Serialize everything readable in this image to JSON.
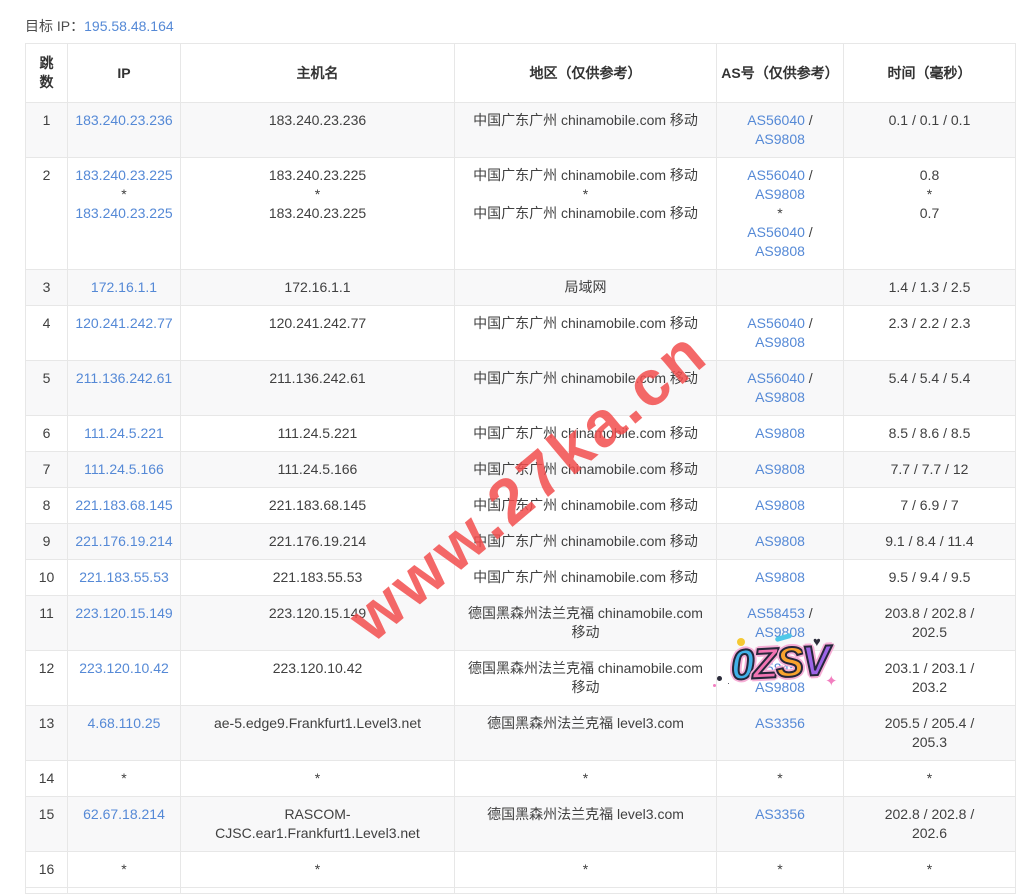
{
  "colors": {
    "link_blue": "#5589d6",
    "watermark_red": "#f24e4e",
    "stripe_bg": "#f8f8f9",
    "border": "#e7e7e7",
    "text": "#404040"
  },
  "header": {
    "target_ip_label": "目标 IP：",
    "target_ip": "195.58.48.164"
  },
  "watermark": {
    "text": "www.27ka.cn"
  },
  "sticker": {
    "heart_icon": "♥",
    "sparkle_icon": "✦",
    "letters": [
      {
        "t": "0",
        "c": "#41b1e8"
      },
      {
        "t": "Z",
        "c": "#f273b2"
      },
      {
        "t": "S",
        "c": "#f9a32e"
      },
      {
        "t": "V",
        "c": "#9d64e6"
      }
    ]
  },
  "table": {
    "columns": [
      "跳\n数",
      "IP",
      "主机名",
      "地区（仅供参考）",
      "AS号（仅供参考）",
      "时间（毫秒）"
    ],
    "rows": [
      {
        "hop": "1",
        "ip": [
          [
            {
              "t": "183.240.23.236",
              "link": true
            }
          ]
        ],
        "host": [
          "183.240.23.236"
        ],
        "region": [
          "中国广东广州 chinamobile.com 移动"
        ],
        "as": [
          [
            {
              "t": "AS56040",
              "link": true
            },
            {
              "t": " /"
            }
          ],
          [
            {
              "t": "AS9808",
              "link": true
            }
          ]
        ],
        "time": [
          "0.1 / 0.1 / 0.1"
        ]
      },
      {
        "hop": "2",
        "ip": [
          [
            {
              "t": "183.240.23.225",
              "link": true
            }
          ],
          [
            {
              "t": "*"
            }
          ],
          [
            {
              "t": "183.240.23.225",
              "link": true
            }
          ]
        ],
        "host": [
          "183.240.23.225",
          "*",
          "183.240.23.225"
        ],
        "region": [
          "中国广东广州 chinamobile.com 移动",
          "*",
          "中国广东广州 chinamobile.com 移动"
        ],
        "as": [
          [
            {
              "t": "AS56040",
              "link": true
            },
            {
              "t": " /"
            }
          ],
          [
            {
              "t": "AS9808",
              "link": true
            }
          ],
          [
            {
              "t": "*"
            }
          ],
          [
            {
              "t": "AS56040",
              "link": true
            },
            {
              "t": " /"
            }
          ],
          [
            {
              "t": "AS9808",
              "link": true
            }
          ]
        ],
        "time": [
          "0.8",
          "*",
          "0.7"
        ]
      },
      {
        "hop": "3",
        "ip": [
          [
            {
              "t": "172.16.1.1",
              "link": true
            }
          ]
        ],
        "host": [
          "172.16.1.1"
        ],
        "region": [
          "局域网"
        ],
        "as": [],
        "time": [
          "1.4 / 1.3 / 2.5"
        ]
      },
      {
        "hop": "4",
        "ip": [
          [
            {
              "t": "120.241.242.77",
              "link": true
            }
          ]
        ],
        "host": [
          "120.241.242.77"
        ],
        "region": [
          "中国广东广州 chinamobile.com 移动"
        ],
        "as": [
          [
            {
              "t": "AS56040",
              "link": true
            },
            {
              "t": " /"
            }
          ],
          [
            {
              "t": "AS9808",
              "link": true
            }
          ]
        ],
        "time": [
          "2.3 / 2.2 / 2.3"
        ]
      },
      {
        "hop": "5",
        "ip": [
          [
            {
              "t": "211.136.242.61",
              "link": true
            }
          ]
        ],
        "host": [
          "211.136.242.61"
        ],
        "region": [
          "中国广东广州 chinamobile.com 移动"
        ],
        "as": [
          [
            {
              "t": "AS56040",
              "link": true
            },
            {
              "t": " /"
            }
          ],
          [
            {
              "t": "AS9808",
              "link": true
            }
          ]
        ],
        "time": [
          "5.4 / 5.4 / 5.4"
        ]
      },
      {
        "hop": "6",
        "ip": [
          [
            {
              "t": "111.24.5.221",
              "link": true
            }
          ]
        ],
        "host": [
          "111.24.5.221"
        ],
        "region": [
          "中国广东广州 chinamobile.com 移动"
        ],
        "as": [
          [
            {
              "t": "AS9808",
              "link": true
            }
          ]
        ],
        "time": [
          "8.5 / 8.6 / 8.5"
        ]
      },
      {
        "hop": "7",
        "ip": [
          [
            {
              "t": "111.24.5.166",
              "link": true
            }
          ]
        ],
        "host": [
          "111.24.5.166"
        ],
        "region": [
          "中国广东广州 chinamobile.com 移动"
        ],
        "as": [
          [
            {
              "t": "AS9808",
              "link": true
            }
          ]
        ],
        "time": [
          "7.7 / 7.7 / 12"
        ]
      },
      {
        "hop": "8",
        "ip": [
          [
            {
              "t": "221.183.68.145",
              "link": true
            }
          ]
        ],
        "host": [
          "221.183.68.145"
        ],
        "region": [
          "中国广东广州 chinamobile.com 移动"
        ],
        "as": [
          [
            {
              "t": "AS9808",
              "link": true
            }
          ]
        ],
        "time": [
          "7 / 6.9 / 7"
        ]
      },
      {
        "hop": "9",
        "ip": [
          [
            {
              "t": "221.176.19.214",
              "link": true
            }
          ]
        ],
        "host": [
          "221.176.19.214"
        ],
        "region": [
          "中国广东广州 chinamobile.com 移动"
        ],
        "as": [
          [
            {
              "t": "AS9808",
              "link": true
            }
          ]
        ],
        "time": [
          "9.1 / 8.4 / 11.4"
        ]
      },
      {
        "hop": "10",
        "ip": [
          [
            {
              "t": "221.183.55.53",
              "link": true
            }
          ]
        ],
        "host": [
          "221.183.55.53"
        ],
        "region": [
          "中国广东广州 chinamobile.com 移动"
        ],
        "as": [
          [
            {
              "t": "AS9808",
              "link": true
            }
          ]
        ],
        "time": [
          "9.5 / 9.4 / 9.5"
        ]
      },
      {
        "hop": "11",
        "ip": [
          [
            {
              "t": "223.120.15.149",
              "link": true
            }
          ]
        ],
        "host": [
          "223.120.15.149"
        ],
        "region": [
          "德国黑森州法兰克福 chinamobile.com",
          "移动"
        ],
        "as": [
          [
            {
              "t": "AS58453",
              "link": true
            },
            {
              "t": " /"
            }
          ],
          [
            {
              "t": "AS9808",
              "link": true
            }
          ]
        ],
        "time": [
          "203.8 / 202.8 /",
          "202.5"
        ]
      },
      {
        "hop": "12",
        "ip": [
          [
            {
              "t": "223.120.10.42",
              "link": true
            }
          ]
        ],
        "host": [
          "223.120.10.42"
        ],
        "region": [
          "德国黑森州法兰克福 chinamobile.com",
          "移动"
        ],
        "as": [
          [
            {
              "t": "AS58453",
              "link": true
            },
            {
              "t": " /"
            }
          ],
          [
            {
              "t": "AS9808",
              "link": true
            }
          ]
        ],
        "time": [
          "203.1 / 203.1 /",
          "203.2"
        ]
      },
      {
        "hop": "13",
        "ip": [
          [
            {
              "t": "4.68.110.25",
              "link": true
            }
          ]
        ],
        "host": [
          "ae-5.edge9.Frankfurt1.Level3.net"
        ],
        "region": [
          "德国黑森州法兰克福 level3.com"
        ],
        "as": [
          [
            {
              "t": "AS3356",
              "link": true
            }
          ]
        ],
        "time": [
          "205.5 / 205.4 /",
          "205.3"
        ]
      },
      {
        "hop": "14",
        "ip": [
          [
            {
              "t": "*"
            }
          ]
        ],
        "host": [
          "*"
        ],
        "region": [
          "*"
        ],
        "as": [
          [
            {
              "t": "*"
            }
          ]
        ],
        "time": [
          "*"
        ]
      },
      {
        "hop": "15",
        "ip": [
          [
            {
              "t": "62.67.18.214",
              "link": true
            }
          ]
        ],
        "host": [
          "RASCOM-",
          "CJSC.ear1.Frankfurt1.Level3.net"
        ],
        "region": [
          "德国黑森州法兰克福 level3.com"
        ],
        "as": [
          [
            {
              "t": "AS3356",
              "link": true
            }
          ]
        ],
        "time": [
          "202.8 / 202.8 /",
          "202.6"
        ]
      },
      {
        "hop": "16",
        "ip": [
          [
            {
              "t": "*"
            }
          ]
        ],
        "host": [
          "*"
        ],
        "region": [
          "*"
        ],
        "as": [
          [
            {
              "t": "*"
            }
          ]
        ],
        "time": [
          "*"
        ]
      }
    ]
  }
}
